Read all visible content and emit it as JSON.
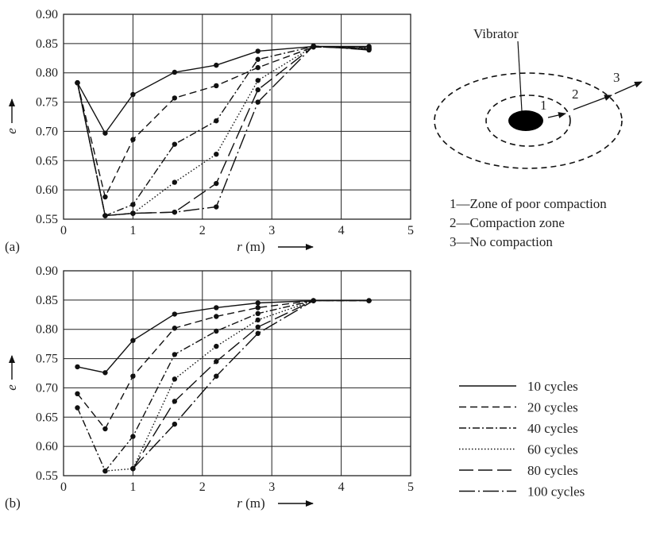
{
  "styles": {
    "10 cycles": "",
    "20 cycles": "9,5",
    "40 cycles": "9,3,2,3",
    "60 cycles": "1.5,2.5",
    "80 cycles": "18,6",
    "100 cycles": "20,4,2,4"
  },
  "colors": {
    "line": "#111111",
    "grid": "#222222",
    "vibrator": "#000000"
  },
  "chart_data": [
    {
      "type": "line",
      "panel_label": "(a)",
      "xlabel_var": "r",
      "xlabel_unit": "(m)",
      "ylabel": "e",
      "xlim": [
        0,
        5
      ],
      "ylim": [
        0.55,
        0.9
      ],
      "xticks": [
        0,
        1,
        2,
        3,
        4,
        5
      ],
      "yticks": [
        0.55,
        0.6,
        0.65,
        0.7,
        0.75,
        0.8,
        0.85,
        0.9
      ],
      "grid": true,
      "series": [
        {
          "name": "10 cycles",
          "x": [
            0.2,
            0.6,
            1.0,
            1.6,
            2.2,
            2.8,
            3.6,
            4.4
          ],
          "y": [
            0.783,
            0.697,
            0.763,
            0.801,
            0.813,
            0.837,
            0.845,
            0.845
          ]
        },
        {
          "name": "20 cycles",
          "x": [
            0.2,
            0.6,
            1.0,
            1.6,
            2.2,
            2.8,
            3.6,
            4.4
          ],
          "y": [
            0.783,
            0.588,
            0.686,
            0.757,
            0.778,
            0.809,
            0.844,
            0.843
          ]
        },
        {
          "name": "40 cycles",
          "x": [
            0.2,
            0.6,
            1.0,
            1.6,
            2.2,
            2.8,
            3.6,
            4.4
          ],
          "y": [
            0.783,
            0.556,
            0.575,
            0.678,
            0.718,
            0.823,
            0.845,
            0.842
          ]
        },
        {
          "name": "60 cycles",
          "x": [
            0.2,
            0.6,
            1.0,
            1.6,
            2.2,
            2.8,
            3.6,
            4.4
          ],
          "y": [
            0.783,
            0.556,
            0.56,
            0.613,
            0.661,
            0.787,
            0.845,
            0.841
          ]
        },
        {
          "name": "80 cycles",
          "x": [
            0.2,
            0.6,
            1.0,
            1.6,
            2.2,
            2.8,
            3.6,
            4.4
          ],
          "y": [
            0.783,
            0.556,
            0.56,
            0.562,
            0.611,
            0.771,
            0.845,
            0.84
          ]
        },
        {
          "name": "100 cycles",
          "x": [
            0.2,
            0.6,
            1.0,
            1.6,
            2.2,
            2.8,
            3.6,
            4.4
          ],
          "y": [
            0.783,
            0.556,
            0.56,
            0.562,
            0.571,
            0.75,
            0.846,
            0.839
          ]
        }
      ]
    },
    {
      "type": "line",
      "panel_label": "(b)",
      "xlabel_var": "r",
      "xlabel_unit": "(m)",
      "ylabel": "e",
      "xlim": [
        0,
        5
      ],
      "ylim": [
        0.55,
        0.9
      ],
      "xticks": [
        0,
        1,
        2,
        3,
        4,
        5
      ],
      "yticks": [
        0.55,
        0.6,
        0.65,
        0.7,
        0.75,
        0.8,
        0.85,
        0.9
      ],
      "grid": true,
      "series": [
        {
          "name": "10 cycles",
          "x": [
            0.2,
            0.6,
            1.0,
            1.6,
            2.2,
            2.8,
            3.6,
            4.4
          ],
          "y": [
            0.736,
            0.726,
            0.781,
            0.826,
            0.837,
            0.845,
            0.849,
            0.849
          ]
        },
        {
          "name": "20 cycles",
          "x": [
            0.2,
            0.6,
            1.0,
            1.6,
            2.2,
            2.8,
            3.6,
            4.4
          ],
          "y": [
            0.69,
            0.63,
            0.72,
            0.802,
            0.822,
            0.837,
            0.849,
            0.849
          ]
        },
        {
          "name": "40 cycles",
          "x": [
            0.2,
            0.6,
            1.0,
            1.6,
            2.2,
            2.8,
            3.6,
            4.4
          ],
          "y": [
            0.666,
            0.558,
            0.617,
            0.757,
            0.797,
            0.827,
            0.849,
            0.849
          ]
        },
        {
          "name": "60 cycles",
          "x": [
            0.6,
            1.0,
            1.6,
            2.2,
            2.8,
            3.6
          ],
          "y": [
            0.558,
            0.562,
            0.715,
            0.771,
            0.816,
            0.849
          ]
        },
        {
          "name": "80 cycles",
          "x": [
            1.0,
            1.6,
            2.2,
            2.8,
            3.6
          ],
          "y": [
            0.562,
            0.677,
            0.745,
            0.804,
            0.849
          ]
        },
        {
          "name": "100 cycles",
          "x": [
            1.0,
            1.6,
            2.2,
            2.8,
            3.6
          ],
          "y": [
            0.562,
            0.638,
            0.72,
            0.793,
            0.849
          ]
        }
      ]
    }
  ],
  "zone_diagram": {
    "vibrator_label": "Vibrator",
    "arrow_numbers": [
      "1",
      "2",
      "3"
    ],
    "zones": [
      "1—Zone of poor compaction",
      "2—Compaction zone",
      "3—No compaction"
    ]
  },
  "legend": {
    "entries": [
      "10 cycles",
      "20 cycles",
      "40 cycles",
      "60 cycles",
      "80 cycles",
      "100 cycles"
    ]
  }
}
